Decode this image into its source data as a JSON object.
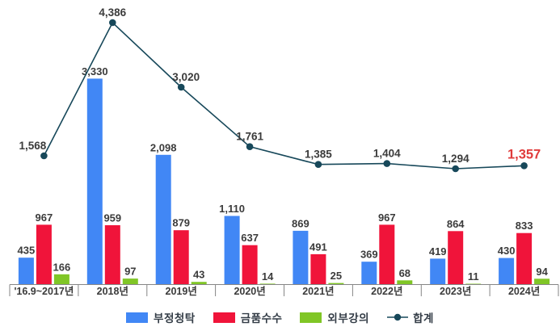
{
  "chart_data": {
    "type": "bar",
    "subtype": "grouped-bars-with-total-line",
    "title": "",
    "xlabel": "",
    "ylabel": "",
    "grid": false,
    "legend_position": "bottom",
    "data_labels": true,
    "categories": [
      "'16.9~2017년",
      "2018년",
      "2019년",
      "2020년",
      "2021년",
      "2022년",
      "2023년",
      "2024년"
    ],
    "series": [
      {
        "name": "부정청탁",
        "type": "bar",
        "color": "#4187f5",
        "values": [
          435,
          3330,
          2098,
          1110,
          869,
          369,
          419,
          430
        ]
      },
      {
        "name": "금품수수",
        "type": "bar",
        "color": "#f0143a",
        "values": [
          967,
          959,
          879,
          637,
          491,
          967,
          864,
          833
        ]
      },
      {
        "name": "외부강의",
        "type": "bar",
        "color": "#80c626",
        "values": [
          166,
          97,
          43,
          14,
          25,
          68,
          11,
          94
        ]
      },
      {
        "name": "합계",
        "type": "line",
        "color": "#17485a",
        "values": [
          1568,
          4386,
          3020,
          1761,
          1385,
          1404,
          1294,
          1357
        ]
      }
    ],
    "bar_ylim": [
      0,
      4600
    ],
    "line_ylim": [
      -1150,
      4600
    ],
    "highlight": {
      "series": "합계",
      "category": "2024년",
      "value": 1357,
      "color": "#e03c3c"
    }
  },
  "legend": {
    "items": [
      {
        "label": "부정청탁",
        "type": "bar",
        "color": "#4187f5"
      },
      {
        "label": "금품수수",
        "type": "bar",
        "color": "#f0143a"
      },
      {
        "label": "외부강의",
        "type": "bar",
        "color": "#80c626"
      },
      {
        "label": "합계",
        "type": "line",
        "color": "#17485a"
      }
    ]
  },
  "colors": {
    "label_text": "#3b3b3b",
    "axis": "#868686",
    "category_text": "#3b3b3b",
    "highlight_text": "#e03c3c",
    "background": "#ffffff"
  }
}
